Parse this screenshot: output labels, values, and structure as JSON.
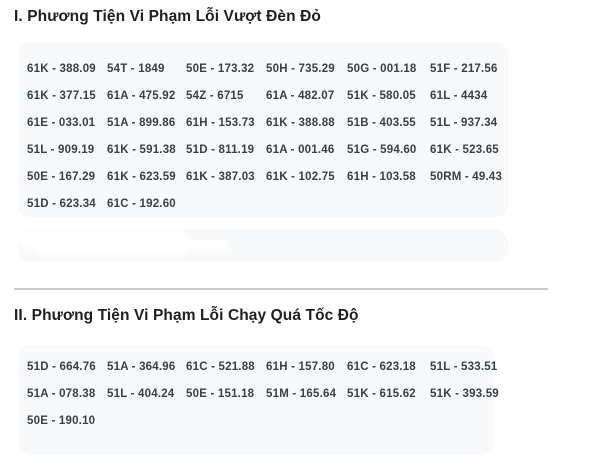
{
  "colors": {
    "page_background": "#ffffff",
    "card_background": "#f8f9fa",
    "title_text": "#1f1f1f",
    "plate_text": "#3c4043",
    "divider": "#c9cacc"
  },
  "sections": [
    {
      "title": "I. Phương Tiện Vi Phạm Lỗi Vượt Đèn Đỏ",
      "plates": [
        "61K - 388.09",
        "54T - 1849",
        "50E - 173.32",
        "50H - 735.29",
        "50G - 001.18",
        "51F - 217.56",
        "61K - 377.15",
        "61A - 475.92",
        "54Z - 6715",
        "61A - 482.07",
        "51K - 580.05",
        "61L - 4434",
        "61E - 033.01",
        "51A - 899.86",
        "61H - 153.73",
        "61K - 388.88",
        "51B - 403.55",
        "51L - 937.34",
        "51L - 909.19",
        "61K - 591.38",
        "51D - 811.19",
        "61A - 001.46",
        "51G - 594.60",
        "61K - 523.65",
        "50E - 167.29",
        "61K - 623.59",
        "61K - 387.03",
        "61K - 102.75",
        "61H - 103.58",
        "50RM - 49.43",
        "51D - 623.34",
        "61C - 192.60"
      ]
    },
    {
      "title": "II. Phương Tiện Vi Phạm Lỗi Chạy Quá Tốc Độ",
      "plates": [
        "51D - 664.76",
        "51A - 364.96",
        "61C - 521.88",
        "61H - 157.80",
        "61C - 623.18",
        "51L - 533.51",
        "51A - 078.38",
        "51L - 404.24",
        "50E - 151.18",
        "51M - 165.64",
        "51K - 615.62",
        "51K - 393.59",
        "50E - 190.10"
      ]
    }
  ]
}
